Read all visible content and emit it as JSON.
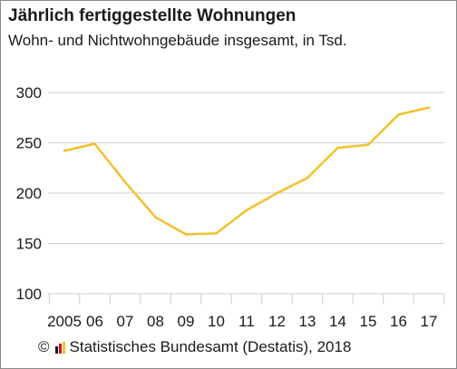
{
  "title": "Jährlich fertiggestellte Wohnungen",
  "subtitle": "Wohn- und Nichtwohngebäude insgesamt, in Tsd.",
  "source": {
    "copyright_symbol": "©",
    "logo_icon": "destatis-logo-icon",
    "text": "Statistisches Bundesamt (Destatis), 2018"
  },
  "colors": {
    "line": "#f2c12e",
    "grid": "#cfcfcf",
    "text": "#1a1a1a",
    "logo": [
      "#1a1a1a",
      "#c8102e",
      "#f2c12e"
    ]
  },
  "chart_data": {
    "type": "line",
    "categories": [
      "2005",
      "06",
      "07",
      "08",
      "09",
      "10",
      "11",
      "12",
      "13",
      "14",
      "15",
      "16",
      "17"
    ],
    "series": [
      {
        "values": [
          242,
          249,
          211,
          176,
          159,
          160,
          183,
          200,
          215,
          245,
          248,
          278,
          285
        ]
      }
    ],
    "yticks": [
      100,
      150,
      200,
      250,
      300
    ],
    "ylim": [
      100,
      310
    ],
    "grid": true,
    "legend": "none"
  }
}
